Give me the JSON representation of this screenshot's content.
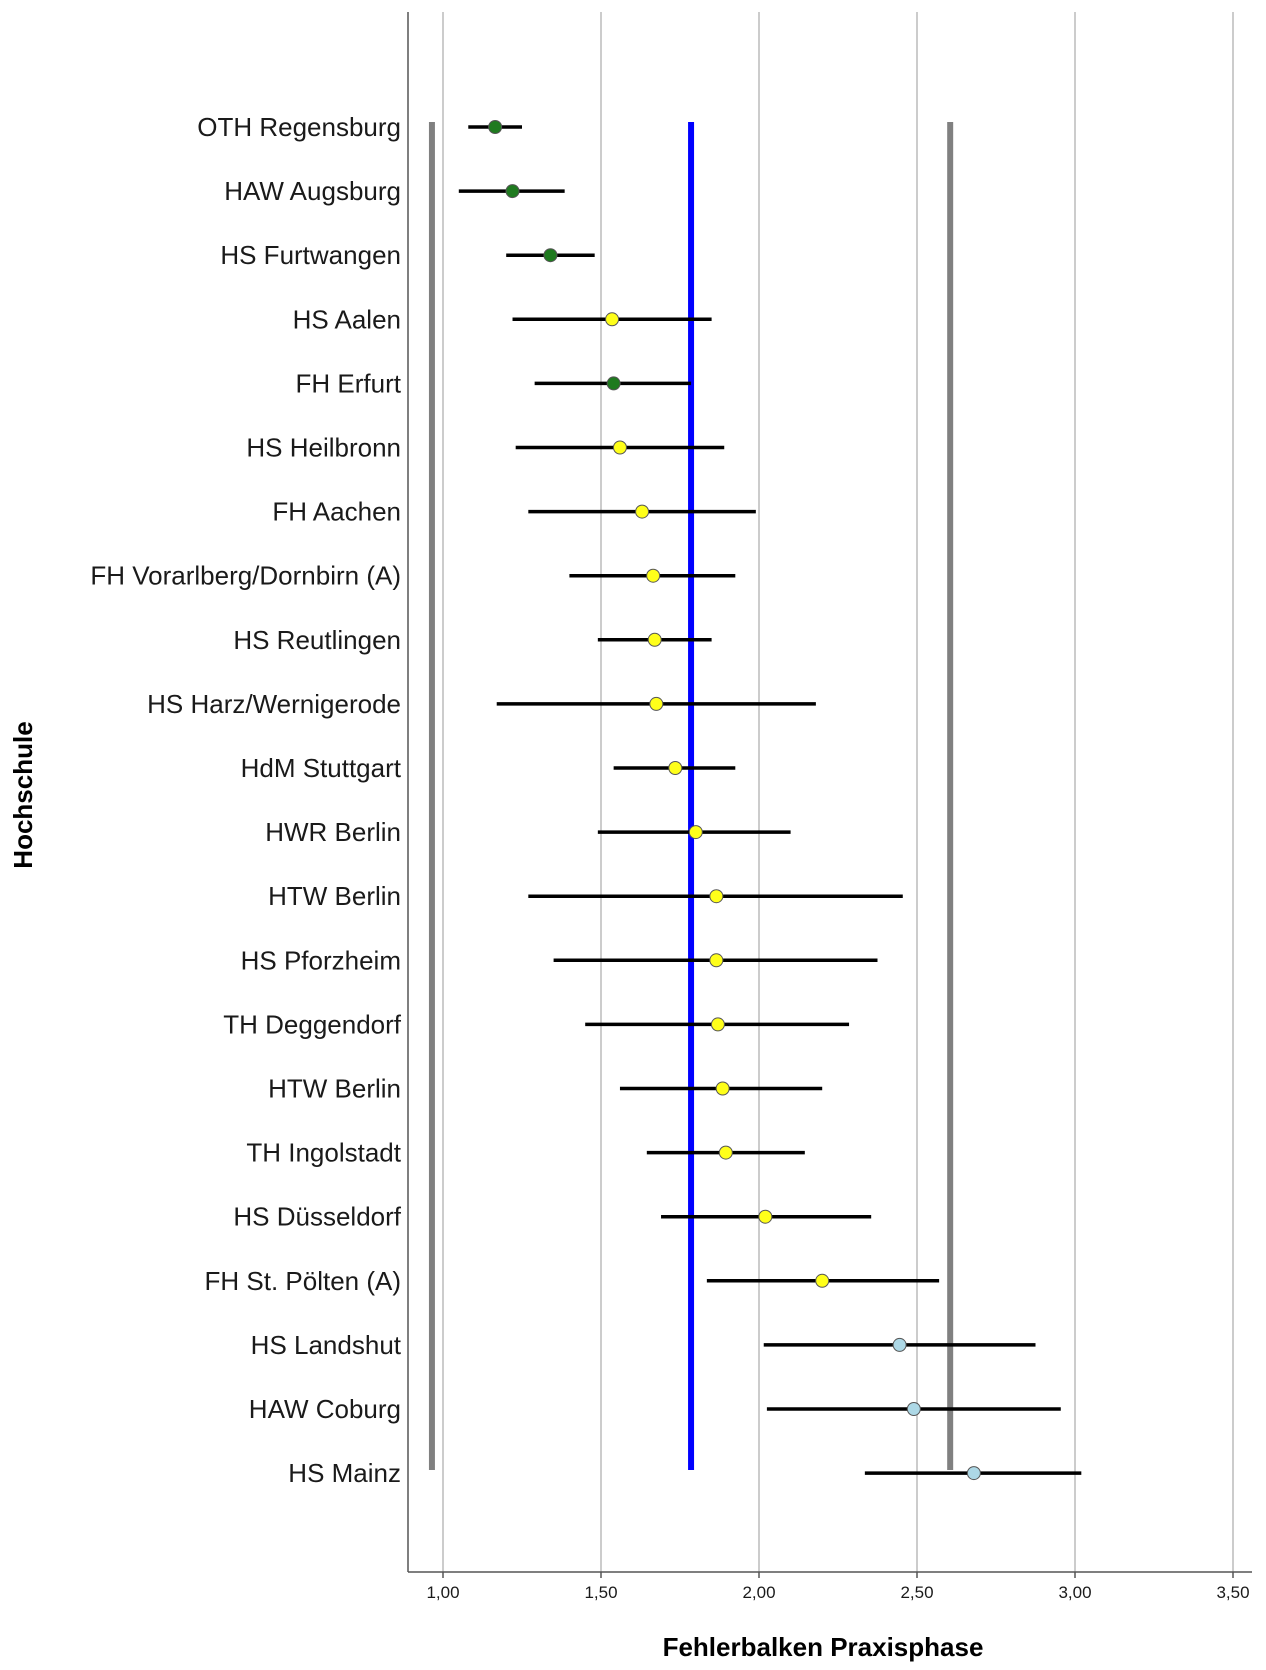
{
  "chart_data": {
    "type": "scatter",
    "subtype": "error-bar",
    "xlabel": "Fehlerbalken Praxisphase",
    "ylabel": "Hochschule",
    "xlim": [
      0.9,
      3.57
    ],
    "x_ticks": [
      1.0,
      1.5,
      2.0,
      2.5,
      3.0,
      3.5
    ],
    "x_tick_labels": [
      "1,00",
      "1,50",
      "2,00",
      "2,50",
      "3,00",
      "3,50"
    ],
    "grid": "vertical",
    "reference_lines": [
      {
        "value": 0.965,
        "color": "#808080"
      },
      {
        "value": 1.785,
        "color": "#0000ff"
      },
      {
        "value": 2.605,
        "color": "#808080"
      }
    ],
    "colors": {
      "green": "#1f7a1f",
      "yellow": "#ffff1a",
      "lightblue": "#add8e6",
      "errorbar": "#000000",
      "grid": "#cccccc",
      "axis": "#555555"
    },
    "points": [
      {
        "label": "OTH Regensburg",
        "mean": 1.165,
        "lower": 1.08,
        "upper": 1.25,
        "color": "green"
      },
      {
        "label": "HAW Augsburg",
        "mean": 1.22,
        "lower": 1.05,
        "upper": 1.385,
        "color": "green"
      },
      {
        "label": "HS Furtwangen",
        "mean": 1.34,
        "lower": 1.2,
        "upper": 1.48,
        "color": "green"
      },
      {
        "label": "HS Aalen",
        "mean": 1.535,
        "lower": 1.22,
        "upper": 1.85,
        "color": "yellow"
      },
      {
        "label": "FH Erfurt",
        "mean": 1.54,
        "lower": 1.29,
        "upper": 1.785,
        "color": "green"
      },
      {
        "label": "HS Heilbronn",
        "mean": 1.56,
        "lower": 1.23,
        "upper": 1.89,
        "color": "yellow"
      },
      {
        "label": "FH Aachen",
        "mean": 1.63,
        "lower": 1.27,
        "upper": 1.99,
        "color": "yellow"
      },
      {
        "label": "FH Vorarlberg/Dornbirn (A)",
        "mean": 1.665,
        "lower": 1.4,
        "upper": 1.925,
        "color": "yellow"
      },
      {
        "label": "HS Reutlingen",
        "mean": 1.67,
        "lower": 1.49,
        "upper": 1.85,
        "color": "yellow"
      },
      {
        "label": "HS Harz/Wernigerode",
        "mean": 1.675,
        "lower": 1.17,
        "upper": 2.18,
        "color": "yellow"
      },
      {
        "label": "HdM Stuttgart",
        "mean": 1.735,
        "lower": 1.54,
        "upper": 1.925,
        "color": "yellow"
      },
      {
        "label": "HWR Berlin",
        "mean": 1.8,
        "lower": 1.49,
        "upper": 2.1,
        "color": "yellow"
      },
      {
        "label": "HTW Berlin",
        "mean": 1.865,
        "lower": 1.27,
        "upper": 2.455,
        "color": "yellow"
      },
      {
        "label": "HS Pforzheim",
        "mean": 1.865,
        "lower": 1.35,
        "upper": 2.375,
        "color": "yellow"
      },
      {
        "label": "TH Deggendorf",
        "mean": 1.87,
        "lower": 1.45,
        "upper": 2.285,
        "color": "yellow"
      },
      {
        "label": "HTW Berlin",
        "mean": 1.885,
        "lower": 1.56,
        "upper": 2.2,
        "color": "yellow"
      },
      {
        "label": "TH Ingolstadt",
        "mean": 1.895,
        "lower": 1.645,
        "upper": 2.145,
        "color": "yellow"
      },
      {
        "label": "HS Düsseldorf",
        "mean": 2.02,
        "lower": 1.69,
        "upper": 2.355,
        "color": "yellow"
      },
      {
        "label": "FH St. Pölten (A)",
        "mean": 2.2,
        "lower": 1.835,
        "upper": 2.57,
        "color": "yellow"
      },
      {
        "label": "HS Landshut",
        "mean": 2.445,
        "lower": 2.015,
        "upper": 2.875,
        "color": "lightblue"
      },
      {
        "label": "HAW Coburg",
        "mean": 2.49,
        "lower": 2.025,
        "upper": 2.955,
        "color": "lightblue"
      },
      {
        "label": "HS Mainz",
        "mean": 2.68,
        "lower": 2.335,
        "upper": 3.02,
        "color": "lightblue"
      }
    ]
  }
}
